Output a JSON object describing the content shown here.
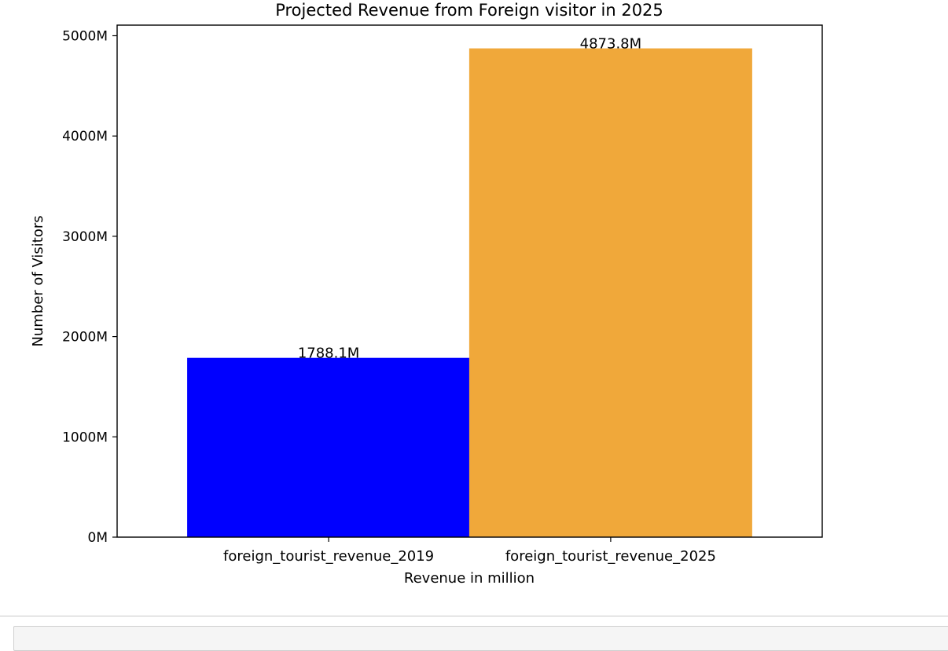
{
  "chart_data": {
    "type": "bar",
    "title": "Projected Revenue from Foreign visitor in 2025",
    "xlabel": "Revenue in million",
    "ylabel": "Number of Visitors",
    "categories": [
      "foreign_tourist_revenue_2019",
      "foreign_tourist_revenue_2025"
    ],
    "values": [
      1788.1,
      4873.8
    ],
    "value_labels": [
      "1788.1M",
      "4873.8M"
    ],
    "colors": [
      "#0000ff",
      "#f0a83a"
    ],
    "ylim": [
      0,
      5100
    ],
    "yticks": [
      0,
      1000,
      2000,
      3000,
      4000,
      5000
    ],
    "ytick_labels": [
      "0M",
      "1000M",
      "2000M",
      "3000M",
      "4000M",
      "5000M"
    ],
    "grid": false,
    "legend": "none"
  }
}
